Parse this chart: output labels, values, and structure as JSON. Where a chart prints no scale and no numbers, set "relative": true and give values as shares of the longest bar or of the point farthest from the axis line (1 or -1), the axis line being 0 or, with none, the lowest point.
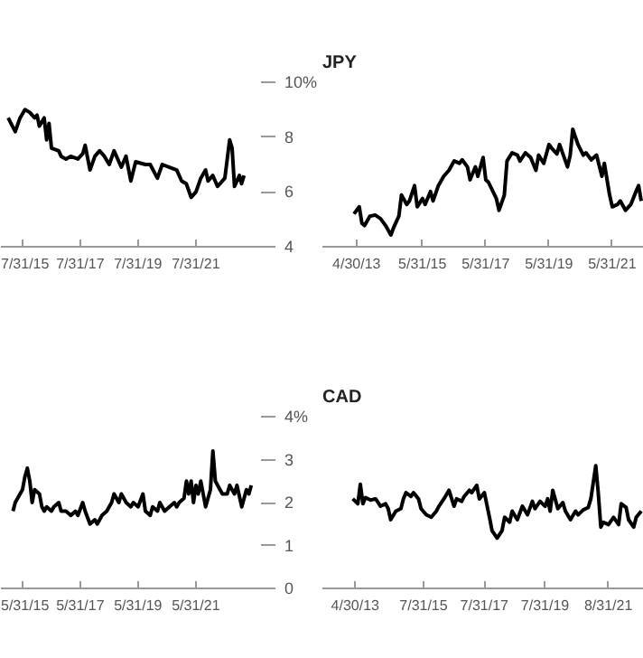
{
  "chart_data": [
    {
      "type": "line",
      "xlim": [
        "2014-11",
        "2023-11"
      ],
      "ylim": [
        4,
        10
      ],
      "xticks": [
        {
          "value": "2015-07-31",
          "label": "7/31/15"
        },
        {
          "value": "2017-07-31",
          "label": "7/31/17"
        },
        {
          "value": "2019-07-31",
          "label": "7/31/19"
        },
        {
          "value": "2021-07-31",
          "label": "7/31/21"
        }
      ],
      "yticks": [
        {
          "value": 4,
          "label": "4"
        },
        {
          "value": 6,
          "label": "6"
        },
        {
          "value": 8,
          "label": "8"
        },
        {
          "value": 10,
          "label": "10%"
        }
      ],
      "x": [
        "2015-02",
        "2015-05",
        "2015-07",
        "2015-09",
        "2015-11",
        "2016-01",
        "2016-02",
        "2016-03",
        "2016-05",
        "2016-06",
        "2016-07",
        "2016-08",
        "2016-11",
        "2016-12",
        "2017-02",
        "2017-04",
        "2017-07",
        "2017-09",
        "2017-10",
        "2017-12",
        "2018-02",
        "2018-04",
        "2018-06",
        "2018-08",
        "2018-10",
        "2019-01",
        "2019-03",
        "2019-05",
        "2019-07",
        "2019-11",
        "2020-01",
        "2020-04",
        "2020-06",
        "2020-09",
        "2020-12",
        "2021-02",
        "2021-04",
        "2021-06",
        "2021-08",
        "2021-10",
        "2021-12",
        "2022-01",
        "2022-03",
        "2022-05",
        "2022-08",
        "2022-10",
        "2022-11",
        "2022-12",
        "2023-02",
        "2023-03",
        "2023-04"
      ],
      "series": [
        {
          "color": "#000000",
          "values": [
            8.7,
            8.2,
            8.7,
            9.0,
            8.9,
            8.7,
            8.8,
            8.4,
            8.7,
            7.9,
            8.5,
            7.6,
            7.5,
            7.3,
            7.2,
            7.3,
            7.2,
            7.4,
            7.7,
            6.8,
            7.3,
            7.5,
            7.3,
            7.0,
            7.5,
            6.9,
            7.3,
            6.4,
            7.1,
            7.0,
            7.0,
            6.5,
            7.0,
            6.9,
            6.8,
            6.4,
            6.3,
            5.8,
            6.0,
            6.5,
            6.8,
            6.4,
            6.6,
            6.2,
            6.5,
            7.9,
            7.6,
            6.2,
            6.6,
            6.3,
            6.6
          ]
        }
      ]
    },
    {
      "type": "line",
      "title": "JPY",
      "relative": true,
      "xlim": [
        "2012-04",
        "2022-06"
      ],
      "xticks": [
        {
          "value": "2013-04-30",
          "label": "4/30/13"
        },
        {
          "value": "2015-05-31",
          "label": "5/31/15"
        },
        {
          "value": "2017-05-31",
          "label": "5/31/17"
        },
        {
          "value": "2019-05-31",
          "label": "5/31/19"
        },
        {
          "value": "2021-05-31",
          "label": "5/31/21"
        }
      ],
      "x": [
        "2013-04",
        "2013-06",
        "2013-07",
        "2013-08",
        "2013-10",
        "2013-12",
        "2014-02",
        "2014-04",
        "2014-06",
        "2014-07",
        "2014-09",
        "2014-10",
        "2014-12",
        "2015-01",
        "2015-03",
        "2015-04",
        "2015-06",
        "2015-07",
        "2015-09",
        "2015-10",
        "2015-12",
        "2016-02",
        "2016-04",
        "2016-06",
        "2016-08",
        "2016-09",
        "2016-11",
        "2016-12",
        "2017-02",
        "2017-03",
        "2017-05",
        "2017-06",
        "2017-07",
        "2017-10",
        "2017-11",
        "2018-01",
        "2018-02",
        "2018-04",
        "2018-06",
        "2018-07",
        "2018-09",
        "2018-11",
        "2019-01",
        "2019-02",
        "2019-04",
        "2019-06",
        "2019-07",
        "2019-09",
        "2019-10",
        "2020-01",
        "2020-02",
        "2020-03",
        "2020-05",
        "2020-07",
        "2020-08",
        "2020-10",
        "2020-12",
        "2021-02",
        "2021-03",
        "2021-05",
        "2021-06",
        "2021-08",
        "2021-09",
        "2021-11",
        "2022-01",
        "2022-03",
        "2022-04",
        "2022-05"
      ],
      "series": [
        {
          "color": "#000000",
          "values": [
            0.28,
            0.34,
            0.2,
            0.18,
            0.26,
            0.27,
            0.24,
            0.18,
            0.1,
            0.16,
            0.26,
            0.44,
            0.36,
            0.39,
            0.52,
            0.34,
            0.41,
            0.36,
            0.47,
            0.39,
            0.52,
            0.6,
            0.65,
            0.73,
            0.71,
            0.74,
            0.68,
            0.57,
            0.68,
            0.6,
            0.76,
            0.57,
            0.55,
            0.41,
            0.31,
            0.44,
            0.73,
            0.8,
            0.78,
            0.73,
            0.8,
            0.76,
            0.65,
            0.78,
            0.71,
            0.87,
            0.84,
            0.79,
            0.87,
            0.68,
            0.78,
            1.0,
            0.87,
            0.78,
            0.8,
            0.74,
            0.78,
            0.6,
            0.71,
            0.44,
            0.34,
            0.36,
            0.39,
            0.31,
            0.36,
            0.47,
            0.52,
            0.39
          ]
        }
      ]
    },
    {
      "type": "line",
      "xlim": [
        "2014-09",
        "2023-09"
      ],
      "ylim": [
        0,
        4
      ],
      "xticks": [
        {
          "value": "2015-05-31",
          "label": "5/31/15"
        },
        {
          "value": "2017-05-31",
          "label": "5/31/17"
        },
        {
          "value": "2019-05-31",
          "label": "5/31/19"
        },
        {
          "value": "2021-05-31",
          "label": "5/31/21"
        }
      ],
      "yticks": [
        {
          "value": 0,
          "label": "0"
        },
        {
          "value": 1,
          "label": "1"
        },
        {
          "value": 2,
          "label": "2"
        },
        {
          "value": 3,
          "label": "3"
        },
        {
          "value": 4,
          "label": "4%"
        }
      ],
      "x": [
        "2015-02",
        "2015-03",
        "2015-05",
        "2015-06",
        "2015-07",
        "2015-08",
        "2015-09",
        "2015-10",
        "2015-11",
        "2016-01",
        "2016-02",
        "2016-03",
        "2016-04",
        "2016-06",
        "2016-07",
        "2016-09",
        "2016-10",
        "2016-12",
        "2017-02",
        "2017-04",
        "2017-05",
        "2017-07",
        "2017-08",
        "2017-10",
        "2017-12",
        "2018-01",
        "2018-03",
        "2018-05",
        "2018-07",
        "2018-08",
        "2018-10",
        "2018-11",
        "2019-01",
        "2019-03",
        "2019-04",
        "2019-06",
        "2019-08",
        "2019-09",
        "2019-11",
        "2019-12",
        "2020-02",
        "2020-03",
        "2020-05",
        "2020-07",
        "2020-09",
        "2020-10",
        "2020-11",
        "2021-01",
        "2021-02",
        "2021-03",
        "2021-04",
        "2021-05",
        "2021-06",
        "2021-07",
        "2021-08",
        "2021-10",
        "2021-12",
        "2022-01",
        "2022-02",
        "2022-04",
        "2022-05",
        "2022-07",
        "2022-08",
        "2022-10",
        "2022-11",
        "2023-01",
        "2023-03",
        "2023-04",
        "2023-05"
      ],
      "series": [
        {
          "color": "#000000",
          "values": [
            1.8,
            2.0,
            2.2,
            2.3,
            2.6,
            2.8,
            2.5,
            2.0,
            2.3,
            2.2,
            1.9,
            1.8,
            1.9,
            1.8,
            1.9,
            2.0,
            1.8,
            1.8,
            1.7,
            1.8,
            1.7,
            2.0,
            1.8,
            1.5,
            1.6,
            1.5,
            1.7,
            1.8,
            2.0,
            2.2,
            2.0,
            2.2,
            2.0,
            1.9,
            2.0,
            1.9,
            2.2,
            1.8,
            1.7,
            1.9,
            1.8,
            2.0,
            1.8,
            1.9,
            2.0,
            1.9,
            2.0,
            2.1,
            2.5,
            2.2,
            2.5,
            2.0,
            2.4,
            2.2,
            2.5,
            1.9,
            2.3,
            3.2,
            2.5,
            2.3,
            2.2,
            2.2,
            2.4,
            2.2,
            2.4,
            1.9,
            2.3,
            2.2,
            2.4
          ]
        }
      ]
    },
    {
      "type": "line",
      "title": "CAD",
      "relative": true,
      "xlim": [
        "2012-04",
        "2022-11"
      ],
      "xticks": [
        {
          "value": "2013-04-30",
          "label": "4/30/13"
        },
        {
          "value": "2015-07-31",
          "label": "7/31/15"
        },
        {
          "value": "2017-07-31",
          "label": "7/31/17"
        },
        {
          "value": "2019-07-31",
          "label": "7/31/19"
        },
        {
          "value": "2021-08-31",
          "label": "8/31/21"
        }
      ],
      "x": [
        "2013-04",
        "2013-06",
        "2013-07",
        "2013-08",
        "2013-09",
        "2013-11",
        "2014-01",
        "2014-03",
        "2014-05",
        "2014-06",
        "2014-07",
        "2014-09",
        "2014-11",
        "2014-12",
        "2015-01",
        "2015-03",
        "2015-04",
        "2015-06",
        "2015-07",
        "2015-09",
        "2015-11",
        "2016-01",
        "2016-02",
        "2016-04",
        "2016-06",
        "2016-08",
        "2016-09",
        "2016-11",
        "2016-12",
        "2017-02",
        "2017-03",
        "2017-05",
        "2017-06",
        "2017-08",
        "2017-10",
        "2017-11",
        "2018-01",
        "2018-03",
        "2018-04",
        "2018-06",
        "2018-07",
        "2018-09",
        "2018-11",
        "2019-01",
        "2019-03",
        "2019-04",
        "2019-06",
        "2019-08",
        "2019-09",
        "2019-10",
        "2019-11",
        "2020-01",
        "2020-03",
        "2020-04",
        "2020-06",
        "2020-08",
        "2020-09",
        "2020-11",
        "2021-01",
        "2021-02",
        "2021-04",
        "2021-05",
        "2021-06",
        "2021-07",
        "2021-09",
        "2021-11",
        "2022-01",
        "2022-02",
        "2022-04",
        "2022-05",
        "2022-07",
        "2022-08",
        "2022-10"
      ],
      "series": [
        {
          "color": "#000000",
          "values": [
            0.73,
            0.69,
            0.85,
            0.69,
            0.74,
            0.72,
            0.73,
            0.67,
            0.69,
            0.65,
            0.56,
            0.63,
            0.65,
            0.73,
            0.78,
            0.75,
            0.78,
            0.73,
            0.65,
            0.6,
            0.58,
            0.63,
            0.67,
            0.73,
            0.8,
            0.67,
            0.73,
            0.71,
            0.75,
            0.8,
            0.78,
            0.84,
            0.73,
            0.78,
            0.58,
            0.47,
            0.41,
            0.47,
            0.58,
            0.54,
            0.63,
            0.56,
            0.67,
            0.6,
            0.71,
            0.65,
            0.71,
            0.67,
            0.73,
            0.63,
            0.8,
            0.65,
            0.7,
            0.63,
            0.56,
            0.63,
            0.6,
            0.64,
            0.66,
            0.73,
            1.0,
            0.78,
            0.5,
            0.54,
            0.52,
            0.58,
            0.52,
            0.69,
            0.66,
            0.56,
            0.5,
            0.58,
            0.63
          ]
        }
      ]
    }
  ]
}
